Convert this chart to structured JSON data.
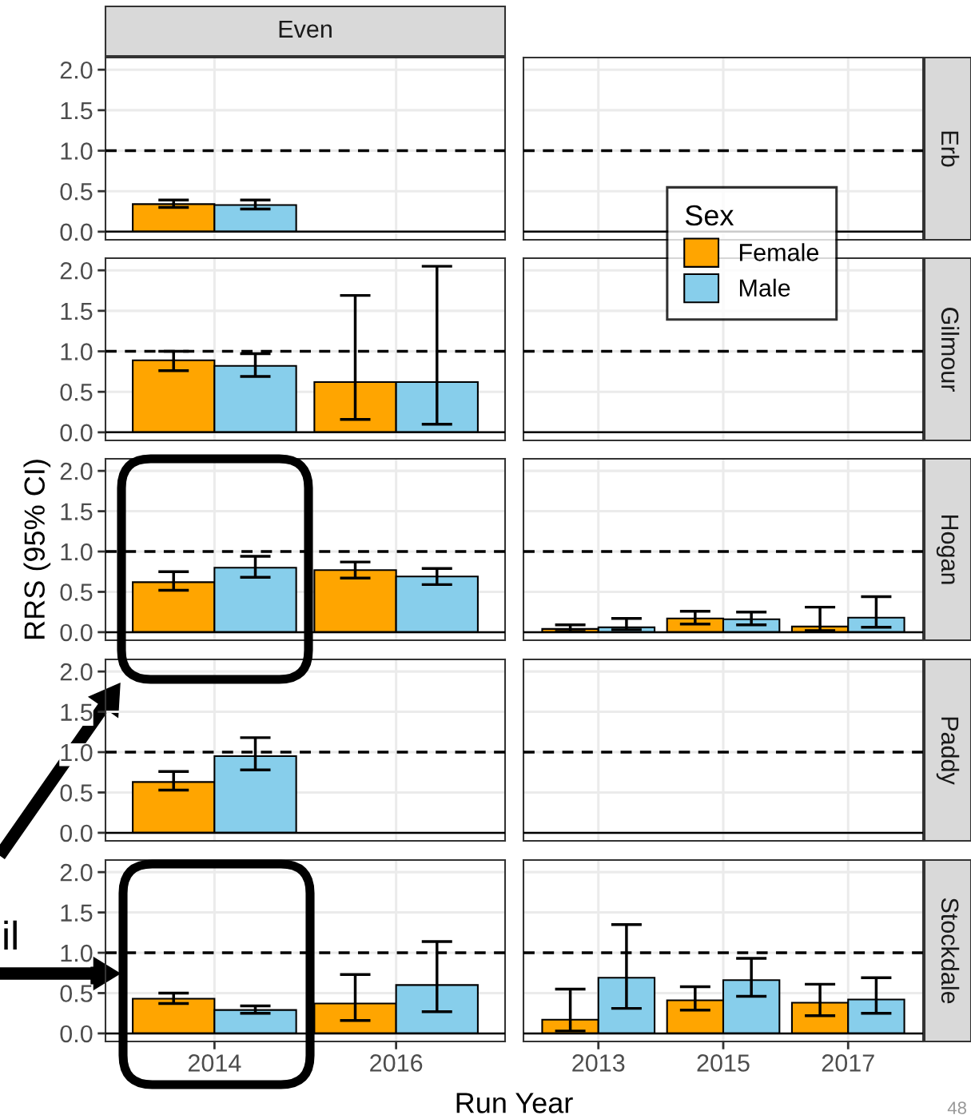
{
  "chart_data": [
    {
      "type": "bar",
      "title": "Even",
      "categories": [
        "2014",
        "2016"
      ],
      "ylim": [
        -0.1,
        2.15
      ],
      "yticks": [
        {
          "value": 0,
          "label": "0.0"
        },
        {
          "value": 0.5,
          "label": "0.5"
        },
        {
          "value": 1,
          "label": "1.0"
        },
        {
          "value": 1.5,
          "label": "1.5"
        },
        {
          "value": 2,
          "label": "2.0"
        }
      ],
      "grid": true,
      "tick_labels": "y",
      "ref_lines": [
        {
          "axis": "y",
          "value": 0,
          "color": "#000000",
          "line_style": "solid"
        },
        {
          "axis": "y",
          "value": 1,
          "color": "#000000",
          "line_style": "dashed"
        }
      ],
      "series": [
        {
          "color": "#ffa500",
          "values": [
            0.34,
            null
          ],
          "errors": [
            [
              0.3,
              0.39
            ],
            null
          ]
        },
        {
          "color": "#87ceeb",
          "values": [
            0.33,
            null
          ],
          "errors": [
            [
              0.28,
              0.39
            ],
            null
          ]
        }
      ]
    },
    {
      "type": "bar",
      "y2label": "Erb",
      "categories": [
        "2013",
        "2015",
        "2017"
      ],
      "ylim": [
        -0.1,
        2.15
      ],
      "yticks": [
        {
          "value": 0,
          "label": null
        },
        {
          "value": 0.5,
          "label": null
        },
        {
          "value": 1,
          "label": null
        },
        {
          "value": 1.5,
          "label": null
        },
        {
          "value": 2,
          "label": null
        }
      ],
      "grid": true,
      "tick_labels": false,
      "legend": "bottom right",
      "legend_title": "Sex",
      "ref_lines": [
        {
          "axis": "y",
          "value": 0,
          "color": "#000000",
          "line_style": "solid"
        },
        {
          "axis": "y",
          "value": 1,
          "color": "#000000",
          "line_style": "dashed"
        }
      ],
      "series": [
        {
          "name": "Female",
          "color": "#ffa500",
          "values": [
            null,
            null,
            null
          ]
        },
        {
          "name": "Male",
          "color": "#87ceeb",
          "values": [
            null,
            null,
            null
          ]
        }
      ]
    },
    {
      "type": "bar",
      "categories": [
        "2014",
        "2016"
      ],
      "ylim": [
        -0.1,
        2.15
      ],
      "yticks": [
        {
          "value": 0,
          "label": "0.0"
        },
        {
          "value": 0.5,
          "label": "0.5"
        },
        {
          "value": 1,
          "label": "1.0"
        },
        {
          "value": 1.5,
          "label": "1.5"
        },
        {
          "value": 2,
          "label": "2.0"
        }
      ],
      "grid": true,
      "tick_labels": "y",
      "ref_lines": [
        {
          "axis": "y",
          "value": 0,
          "color": "#000000",
          "line_style": "solid"
        },
        {
          "axis": "y",
          "value": 1,
          "color": "#000000",
          "line_style": "dashed"
        }
      ],
      "series": [
        {
          "color": "#ffa500",
          "values": [
            0.89,
            0.62
          ],
          "errors": [
            [
              0.76,
              1.0
            ],
            [
              0.16,
              1.69
            ]
          ]
        },
        {
          "color": "#87ceeb",
          "values": [
            0.82,
            0.62
          ],
          "errors": [
            [
              0.69,
              0.97
            ],
            [
              0.1,
              2.05
            ]
          ]
        }
      ]
    },
    {
      "type": "bar",
      "y2label": "Gilmour",
      "categories": [
        "2013",
        "2015",
        "2017"
      ],
      "ylim": [
        -0.1,
        2.15
      ],
      "yticks": [
        {
          "value": 0,
          "label": null
        },
        {
          "value": 0.5,
          "label": null
        },
        {
          "value": 1,
          "label": null
        },
        {
          "value": 1.5,
          "label": null
        },
        {
          "value": 2,
          "label": null
        }
      ],
      "grid": true,
      "tick_labels": false,
      "ref_lines": [
        {
          "axis": "y",
          "value": 0,
          "color": "#000000",
          "line_style": "solid"
        },
        {
          "axis": "y",
          "value": 1,
          "color": "#000000",
          "line_style": "dashed"
        }
      ],
      "series": [
        {
          "color": "#ffa500",
          "values": [
            null,
            null,
            null
          ]
        },
        {
          "color": "#87ceeb",
          "values": [
            null,
            null,
            null
          ]
        }
      ]
    },
    {
      "type": "bar",
      "ylabel": "RRS (95% CI)",
      "categories": [
        "2014",
        "2016"
      ],
      "ylim": [
        -0.1,
        2.15
      ],
      "yticks": [
        {
          "value": 0,
          "label": "0.0"
        },
        {
          "value": 0.5,
          "label": "0.5"
        },
        {
          "value": 1,
          "label": "1.0"
        },
        {
          "value": 1.5,
          "label": "1.5"
        },
        {
          "value": 2,
          "label": "2.0"
        }
      ],
      "grid": true,
      "tick_labels": "y",
      "ref_lines": [
        {
          "axis": "y",
          "value": 0,
          "color": "#000000",
          "line_style": "solid"
        },
        {
          "axis": "y",
          "value": 1,
          "color": "#000000",
          "line_style": "dashed"
        }
      ],
      "series": [
        {
          "color": "#ffa500",
          "values": [
            0.62,
            0.77
          ],
          "errors": [
            [
              0.52,
              0.75
            ],
            [
              0.67,
              0.87
            ]
          ]
        },
        {
          "color": "#87ceeb",
          "values": [
            0.8,
            0.69
          ],
          "errors": [
            [
              0.68,
              0.94
            ],
            [
              0.59,
              0.79
            ]
          ]
        }
      ]
    },
    {
      "type": "bar",
      "y2label": "Hogan",
      "categories": [
        "2013",
        "2015",
        "2017"
      ],
      "ylim": [
        -0.1,
        2.15
      ],
      "yticks": [
        {
          "value": 0,
          "label": null
        },
        {
          "value": 0.5,
          "label": null
        },
        {
          "value": 1,
          "label": null
        },
        {
          "value": 1.5,
          "label": null
        },
        {
          "value": 2,
          "label": null
        }
      ],
      "grid": true,
      "tick_labels": false,
      "ref_lines": [
        {
          "axis": "y",
          "value": 0,
          "color": "#000000",
          "line_style": "solid"
        },
        {
          "axis": "y",
          "value": 1,
          "color": "#000000",
          "line_style": "dashed"
        }
      ],
      "series": [
        {
          "color": "#ffa500",
          "values": [
            0.04,
            0.17,
            0.07
          ],
          "errors": [
            [
              0.01,
              0.09
            ],
            [
              0.1,
              0.26
            ],
            [
              0.02,
              0.31
            ]
          ]
        },
        {
          "color": "#87ceeb",
          "values": [
            0.06,
            0.16,
            0.18
          ],
          "errors": [
            [
              0.03,
              0.17
            ],
            [
              0.09,
              0.25
            ],
            [
              0.06,
              0.44
            ]
          ]
        }
      ]
    },
    {
      "type": "bar",
      "categories": [
        "2014",
        "2016"
      ],
      "ylim": [
        -0.1,
        2.15
      ],
      "yticks": [
        {
          "value": 0,
          "label": "0.0"
        },
        {
          "value": 0.5,
          "label": "0.5"
        },
        {
          "value": 1,
          "label": "1.0"
        },
        {
          "value": 1.5,
          "label": "1.5"
        },
        {
          "value": 2,
          "label": "2.0"
        }
      ],
      "grid": true,
      "tick_labels": "y",
      "ref_lines": [
        {
          "axis": "y",
          "value": 0,
          "color": "#000000",
          "line_style": "solid"
        },
        {
          "axis": "y",
          "value": 1,
          "color": "#000000",
          "line_style": "dashed"
        }
      ],
      "series": [
        {
          "color": "#ffa500",
          "values": [
            0.63,
            null
          ],
          "errors": [
            [
              0.53,
              0.76
            ],
            null
          ]
        },
        {
          "color": "#87ceeb",
          "values": [
            0.95,
            null
          ],
          "errors": [
            [
              0.78,
              1.18
            ],
            null
          ]
        }
      ]
    },
    {
      "type": "bar",
      "y2label": "Paddy",
      "categories": [
        "2013",
        "2015",
        "2017"
      ],
      "ylim": [
        -0.1,
        2.15
      ],
      "yticks": [
        {
          "value": 0,
          "label": null
        },
        {
          "value": 0.5,
          "label": null
        },
        {
          "value": 1,
          "label": null
        },
        {
          "value": 1.5,
          "label": null
        },
        {
          "value": 2,
          "label": null
        }
      ],
      "grid": true,
      "tick_labels": false,
      "ref_lines": [
        {
          "axis": "y",
          "value": 0,
          "color": "#000000",
          "line_style": "solid"
        },
        {
          "axis": "y",
          "value": 1,
          "color": "#000000",
          "line_style": "dashed"
        }
      ],
      "series": [
        {
          "color": "#ffa500",
          "values": [
            null,
            null,
            null
          ]
        },
        {
          "color": "#87ceeb",
          "values": [
            null,
            null,
            null
          ]
        }
      ]
    },
    {
      "type": "bar",
      "xlabel": "Run Year",
      "annotations": [
        "il"
      ],
      "categories": [
        "2014",
        "2016"
      ],
      "ylim": [
        -0.1,
        2.15
      ],
      "yticks": [
        {
          "value": 0,
          "label": "0.0"
        },
        {
          "value": 0.5,
          "label": "0.5"
        },
        {
          "value": 1,
          "label": "1.0"
        },
        {
          "value": 1.5,
          "label": "1.5"
        },
        {
          "value": 2,
          "label": "2.0"
        }
      ],
      "grid": true,
      "ref_lines": [
        {
          "axis": "y",
          "value": 0,
          "color": "#000000",
          "line_style": "solid"
        },
        {
          "axis": "y",
          "value": 1,
          "color": "#000000",
          "line_style": "dashed"
        }
      ],
      "series": [
        {
          "color": "#ffa500",
          "values": [
            0.43,
            0.37
          ],
          "errors": [
            [
              0.37,
              0.5
            ],
            [
              0.16,
              0.73
            ]
          ]
        },
        {
          "color": "#87ceeb",
          "values": [
            0.29,
            0.6
          ],
          "errors": [
            [
              0.25,
              0.34
            ],
            [
              0.27,
              1.14
            ]
          ]
        }
      ]
    },
    {
      "type": "bar",
      "y2label": "Stockdale",
      "annotations": [
        "48"
      ],
      "categories": [
        "2013",
        "2015",
        "2017"
      ],
      "ylim": [
        -0.1,
        2.15
      ],
      "yticks": [
        {
          "value": 0,
          "label": null
        },
        {
          "value": 0.5,
          "label": null
        },
        {
          "value": 1,
          "label": null
        },
        {
          "value": 1.5,
          "label": null
        },
        {
          "value": 2,
          "label": null
        }
      ],
      "grid": true,
      "tick_labels": "x",
      "ref_lines": [
        {
          "axis": "y",
          "value": 0,
          "color": "#000000",
          "line_style": "solid"
        },
        {
          "axis": "y",
          "value": 1,
          "color": "#000000",
          "line_style": "dashed"
        }
      ],
      "series": [
        {
          "color": "#ffa500",
          "values": [
            0.17,
            0.41,
            0.38
          ],
          "errors": [
            [
              0.03,
              0.55
            ],
            [
              0.29,
              0.58
            ],
            [
              0.22,
              0.61
            ]
          ]
        },
        {
          "color": "#87ceeb",
          "values": [
            0.69,
            0.66,
            0.42
          ],
          "errors": [
            [
              0.31,
              1.35
            ],
            [
              0.46,
              0.93
            ],
            [
              0.25,
              0.69
            ]
          ]
        }
      ]
    }
  ]
}
